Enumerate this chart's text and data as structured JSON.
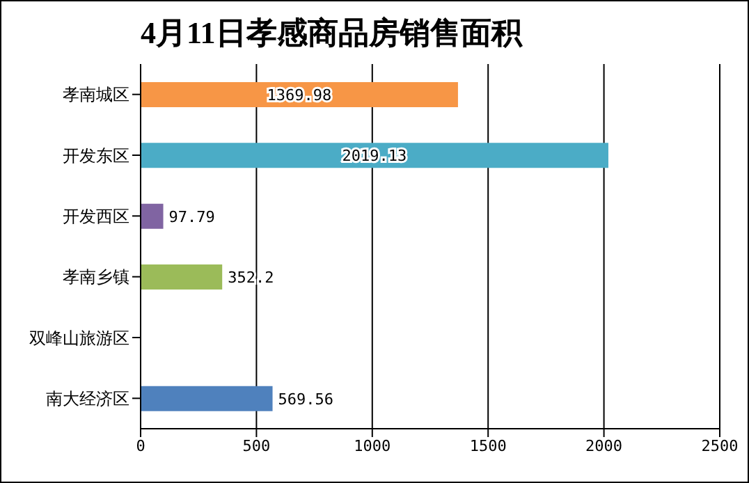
{
  "chart_data": {
    "type": "bar",
    "orientation": "horizontal",
    "title": "4月11日孝感商品房销售面积",
    "categories": [
      "孝南城区",
      "开发东区",
      "开发西区",
      "孝南乡镇",
      "双峰山旅游区",
      "南大经济区"
    ],
    "values": [
      1369.98,
      2019.13,
      97.79,
      352.2,
      null,
      569.56
    ],
    "colors": [
      "#f79646",
      "#4bacc6",
      "#8064a2",
      "#9bbb59",
      "#c0504d",
      "#4f81bd"
    ],
    "xlim": [
      0,
      2500
    ],
    "xticks": [
      0,
      500,
      1000,
      1500,
      2000,
      2500
    ],
    "grid": "x",
    "data_labels": true
  }
}
